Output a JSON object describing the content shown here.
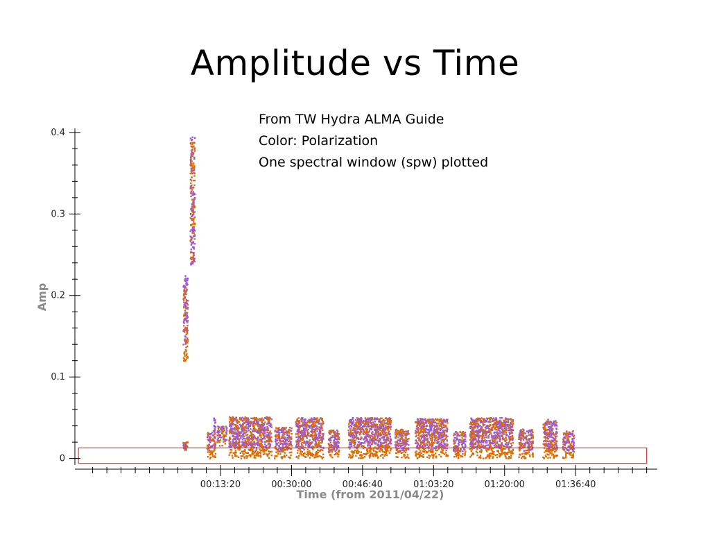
{
  "slide": {
    "title": "Amplitude vs Time",
    "notes": [
      "From TW Hydra ALMA Guide",
      "Color: Polarization",
      "One spectral window (spw) plotted"
    ]
  },
  "chart_data": {
    "type": "scatter",
    "title": "",
    "xlabel": "Time (from 2011/04/22)",
    "ylabel": "Amp",
    "x_unit": "seconds from 00:00:00",
    "xlim": [
      -1250,
      6950
    ],
    "ylim": [
      -0.008,
      0.405
    ],
    "x_ticks": [
      {
        "value": 800,
        "label": "00:13:20"
      },
      {
        "value": 1800,
        "label": "00:30:00"
      },
      {
        "value": 2800,
        "label": "00:46:40"
      },
      {
        "value": 3800,
        "label": "01:03:20"
      },
      {
        "value": 4800,
        "label": "01:20:00"
      },
      {
        "value": 5800,
        "label": "01:36:40"
      }
    ],
    "y_ticks": [
      {
        "value": 0,
        "label": "0"
      },
      {
        "value": 0.1,
        "label": "0.1"
      },
      {
        "value": 0.2,
        "label": "0.2"
      },
      {
        "value": 0.3,
        "label": "0.3"
      },
      {
        "value": 0.4,
        "label": "0.4"
      }
    ],
    "series_colors": {
      "pol_a": "#9b59d6",
      "pol_b": "#e06c00"
    },
    "highlight_box": {
      "x": [
        -1200,
        6800
      ],
      "y": [
        -0.006,
        0.013
      ],
      "color": "#e53935"
    },
    "clusters": [
      {
        "x": [
          275,
          340
        ],
        "y": [
          0.12,
          0.225
        ],
        "pol_a_y": [
          0.14,
          0.225
        ],
        "pol_b_y": [
          0.12,
          0.21
        ]
      },
      {
        "x": [
          375,
          440
        ],
        "y": [
          0.235,
          0.395
        ],
        "pol_a_y": [
          0.235,
          0.395
        ],
        "pol_b_y": [
          0.24,
          0.39
        ]
      },
      {
        "x": [
          275,
          340
        ],
        "y": [
          0.01,
          0.02
        ]
      },
      {
        "x": [
          610,
          690
        ],
        "y": [
          0.0,
          0.032
        ]
      },
      {
        "x": [
          700,
          730
        ],
        "y": [
          0.0,
          0.05
        ]
      },
      {
        "x": [
          750,
          890
        ],
        "y": [
          0.015,
          0.04
        ]
      },
      {
        "x": [
          920,
          1520
        ],
        "y": [
          0.0,
          0.051
        ]
      },
      {
        "x": [
          1560,
          1800
        ],
        "y": [
          0.0,
          0.038
        ]
      },
      {
        "x": [
          1860,
          2250
        ],
        "y": [
          0.0,
          0.05
        ]
      },
      {
        "x": [
          2320,
          2470
        ],
        "y": [
          0.0,
          0.036
        ]
      },
      {
        "x": [
          2600,
          3200
        ],
        "y": [
          0.0,
          0.05
        ]
      },
      {
        "x": [
          3260,
          3450
        ],
        "y": [
          0.0,
          0.036
        ]
      },
      {
        "x": [
          3540,
          4000
        ],
        "y": [
          0.0,
          0.049
        ]
      },
      {
        "x": [
          4080,
          4250
        ],
        "y": [
          0.0,
          0.033
        ]
      },
      {
        "x": [
          4310,
          4920
        ],
        "y": [
          0.0,
          0.05
        ]
      },
      {
        "x": [
          5000,
          5200
        ],
        "y": [
          0.0,
          0.036
        ]
      },
      {
        "x": [
          5340,
          5540
        ],
        "y": [
          0.0,
          0.048
        ]
      },
      {
        "x": [
          5620,
          5780
        ],
        "y": [
          0.0,
          0.034
        ]
      }
    ]
  }
}
